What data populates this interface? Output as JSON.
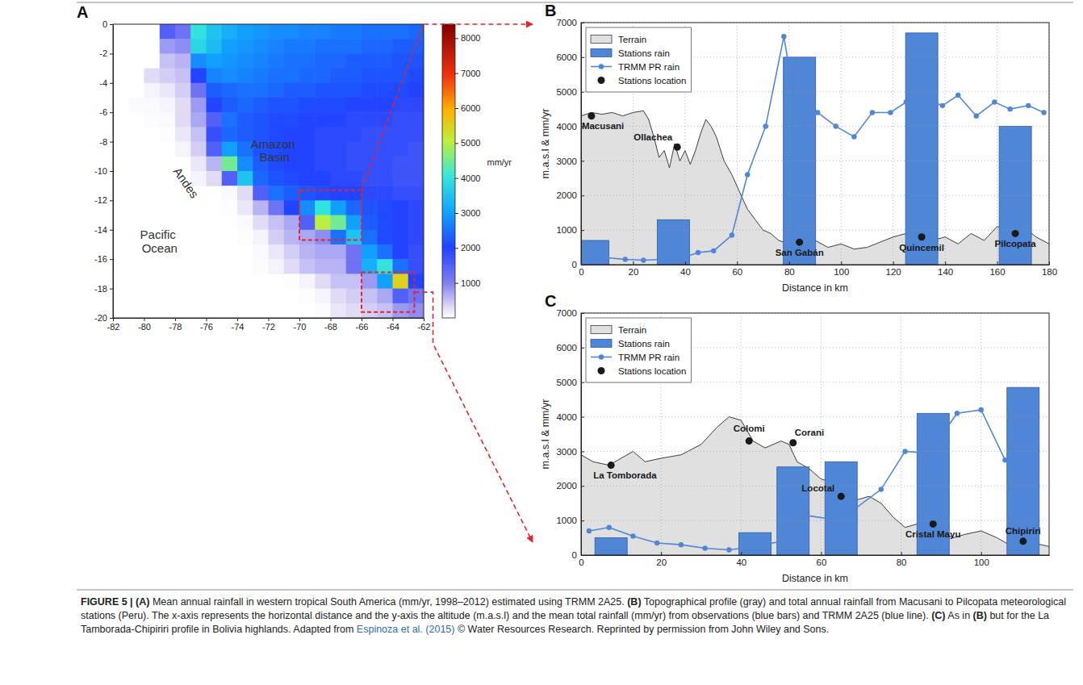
{
  "chart_data": [
    {
      "type": "heatmap",
      "panel": "A",
      "xlim": [
        -82,
        -62
      ],
      "ylim": [
        -20,
        0
      ],
      "xticks": [
        -82,
        -80,
        -78,
        -76,
        -74,
        -72,
        -70,
        -68,
        -66,
        -64,
        -62
      ],
      "yticks": [
        -20,
        -18,
        -16,
        -14,
        -12,
        -10,
        -8,
        -6,
        -4,
        -2,
        0
      ],
      "grid": false,
      "x": [
        -81.5,
        -80.5,
        -79.5,
        -78.5,
        -77.5,
        -76.5,
        -75.5,
        -74.5,
        -73.5,
        -72.5,
        -71.5,
        -70.5,
        -69.5,
        -68.5,
        -67.5,
        -66.5,
        -65.5,
        -64.5,
        -63.5,
        -62.5
      ],
      "y": [
        -0.5,
        -1.5,
        -2.5,
        -3.5,
        -4.5,
        -5.5,
        -6.5,
        -7.5,
        -8.5,
        -9.5,
        -10.5,
        -11.5,
        -12.5,
        -13.5,
        -14.5,
        -15.5,
        -16.5,
        -17.5,
        -18.5,
        -19.5
      ],
      "values": [
        [
          null,
          null,
          null,
          1500,
          1200,
          4000,
          3500,
          3200,
          3000,
          2900,
          2800,
          2800,
          2700,
          2700,
          2600,
          2600,
          2500,
          2500,
          2500,
          2400
        ],
        [
          null,
          null,
          null,
          800,
          900,
          3800,
          3400,
          3000,
          2900,
          2800,
          2700,
          2600,
          2600,
          2500,
          2500,
          2500,
          2400,
          2400,
          2300,
          2300
        ],
        [
          null,
          null,
          null,
          500,
          600,
          2800,
          3000,
          2900,
          2800,
          2700,
          2600,
          2500,
          2500,
          2400,
          2400,
          2300,
          2300,
          2300,
          2200,
          2200
        ],
        [
          null,
          null,
          300,
          400,
          500,
          2000,
          2700,
          2800,
          2700,
          2600,
          2500,
          2500,
          2400,
          2400,
          2300,
          2300,
          2200,
          2200,
          2200,
          2100
        ],
        [
          null,
          null,
          100,
          200,
          400,
          1200,
          2300,
          2400,
          2500,
          2500,
          2400,
          2300,
          2300,
          2200,
          2200,
          2200,
          2100,
          2100,
          2100,
          2000
        ],
        [
          null,
          50,
          50,
          100,
          300,
          800,
          2000,
          2300,
          2400,
          2300,
          2200,
          2200,
          2100,
          2100,
          2100,
          2000,
          2000,
          2000,
          1900,
          1900
        ],
        [
          null,
          null,
          30,
          50,
          300,
          700,
          1500,
          2500,
          2300,
          2200,
          2100,
          2100,
          2000,
          2000,
          2000,
          1900,
          1900,
          1900,
          1800,
          1800
        ],
        [
          null,
          null,
          null,
          20,
          200,
          500,
          1800,
          2400,
          2300,
          2200,
          2100,
          2000,
          2000,
          1900,
          1900,
          1900,
          1800,
          1800,
          1800,
          1800
        ],
        [
          null,
          null,
          null,
          null,
          100,
          400,
          1500,
          3000,
          2500,
          2200,
          2100,
          2000,
          2000,
          1900,
          1900,
          1800,
          1800,
          1800,
          1800,
          1700
        ],
        [
          null,
          null,
          null,
          null,
          null,
          200,
          600,
          4500,
          2800,
          2300,
          2100,
          2000,
          2000,
          1900,
          1900,
          1800,
          1800,
          1800,
          1700,
          1700
        ],
        [
          null,
          null,
          null,
          null,
          null,
          100,
          300,
          1500,
          3500,
          2400,
          2200,
          2100,
          2000,
          2000,
          1900,
          1900,
          1800,
          1800,
          1700,
          1700
        ],
        [
          null,
          null,
          null,
          null,
          null,
          null,
          null,
          50,
          300,
          1500,
          2500,
          2300,
          2200,
          2100,
          2000,
          2000,
          1900,
          1900,
          1800,
          1800
        ],
        [
          null,
          null,
          null,
          null,
          null,
          null,
          null,
          20,
          200,
          600,
          1200,
          2000,
          2800,
          4000,
          3000,
          2400,
          2200,
          2100,
          2000,
          1900
        ],
        [
          null,
          null,
          null,
          null,
          null,
          null,
          null,
          null,
          50,
          300,
          500,
          700,
          1500,
          5000,
          4500,
          3000,
          2300,
          2100,
          2000,
          1900
        ],
        [
          null,
          null,
          null,
          null,
          null,
          null,
          null,
          null,
          20,
          100,
          400,
          600,
          700,
          900,
          2500,
          3500,
          2500,
          2100,
          2000,
          1900
        ],
        [
          null,
          null,
          null,
          null,
          null,
          null,
          null,
          null,
          null,
          50,
          200,
          400,
          600,
          700,
          700,
          1200,
          3000,
          2500,
          2000,
          1800
        ],
        [
          null,
          null,
          null,
          null,
          null,
          null,
          null,
          null,
          null,
          30,
          100,
          300,
          500,
          600,
          600,
          1200,
          3200,
          4000,
          2500,
          1800
        ],
        [
          null,
          null,
          null,
          null,
          null,
          null,
          null,
          null,
          null,
          null,
          null,
          20,
          100,
          300,
          500,
          500,
          800,
          3000,
          5500,
          2000
        ],
        [
          null,
          null,
          null,
          null,
          null,
          null,
          null,
          null,
          null,
          null,
          null,
          null,
          20,
          100,
          300,
          400,
          500,
          700,
          1500,
          1200
        ],
        [
          null,
          null,
          null,
          null,
          null,
          null,
          null,
          null,
          null,
          null,
          null,
          null,
          null,
          30,
          200,
          300,
          400,
          500,
          800,
          900
        ]
      ],
      "colorbar": {
        "range": [
          0,
          8400
        ],
        "ticks": [
          1000,
          2000,
          3000,
          4000,
          5000,
          6000,
          7000,
          8000
        ],
        "label": "mm/yr"
      },
      "annotations": [
        "Amazon Basin",
        "Andes",
        "Pacific Ocean"
      ],
      "boxes": [
        {
          "x": [
            -70,
            -66
          ],
          "y": [
            -14.7,
            -11.3
          ]
        },
        {
          "x": [
            -66,
            -62.6
          ],
          "y": [
            -19.6,
            -16.9
          ]
        }
      ]
    },
    {
      "type": "combo",
      "panel": "B",
      "xlabel": "Distance in km",
      "ylabel": "m.a.s.l & mm/yr",
      "xlim": [
        0,
        180
      ],
      "ylim": [
        0,
        7000
      ],
      "xticks": [
        0,
        20,
        40,
        60,
        80,
        100,
        120,
        140,
        160,
        180
      ],
      "yticks": [
        0,
        1000,
        2000,
        3000,
        4000,
        5000,
        6000,
        7000
      ],
      "grid": true,
      "legend": "upper left",
      "series": [
        {
          "name": "Terrain",
          "type": "area",
          "color": "#e0e0e0",
          "x": [
            0,
            4,
            8,
            12,
            16,
            20,
            24,
            26,
            28,
            30,
            32,
            34,
            36,
            38,
            40,
            42,
            44,
            46,
            48,
            50,
            52,
            55,
            58,
            61,
            64,
            67,
            70,
            73,
            76,
            80,
            85,
            90,
            95,
            100,
            105,
            110,
            115,
            120,
            125,
            130,
            135,
            140,
            145,
            150,
            155,
            160,
            165,
            170,
            175,
            180
          ],
          "values": [
            4300,
            4400,
            4350,
            4400,
            4300,
            4400,
            4450,
            4200,
            3700,
            3100,
            3300,
            2800,
            3500,
            3000,
            3300,
            2900,
            3300,
            3800,
            4200,
            4000,
            3700,
            3000,
            2600,
            2100,
            1600,
            1300,
            1000,
            900,
            700,
            600,
            550,
            700,
            500,
            600,
            450,
            500,
            650,
            800,
            900,
            800,
            700,
            800,
            600,
            900,
            700,
            1100,
            1000,
            1100,
            800,
            600
          ]
        },
        {
          "name": "Stations rain",
          "type": "bar",
          "color": "#4f86d6",
          "x": [
            4.5,
            35.5,
            84,
            131,
            167
          ],
          "values": [
            700,
            1300,
            6000,
            6700,
            4000
          ]
        },
        {
          "name": "TRMM PR rain",
          "type": "line",
          "color": "#4f86d6",
          "marker": "circle",
          "x": [
            3,
            10,
            17,
            24,
            31,
            38,
            45,
            51,
            58,
            64,
            71,
            78,
            84,
            91,
            98,
            105,
            112,
            119,
            125,
            132,
            139,
            145,
            152,
            159,
            165,
            172,
            178
          ],
          "values": [
            350,
            200,
            150,
            130,
            150,
            170,
            350,
            400,
            850,
            2600,
            4000,
            6600,
            3900,
            4400,
            4000,
            3700,
            4400,
            4400,
            4700,
            4800,
            4600,
            4900,
            4300,
            4700,
            4500,
            4600,
            4400
          ]
        },
        {
          "name": "Stations location",
          "type": "scatter",
          "color": "#1a1a1a",
          "marker": "circle",
          "x": [
            4,
            37,
            84,
            131,
            167
          ],
          "values": [
            4300,
            3400,
            650,
            800,
            900
          ],
          "labels": [
            "Macusani",
            "Ollachea",
            "San Gabán",
            "Quincemil",
            "Pilcopata"
          ]
        }
      ]
    },
    {
      "type": "combo",
      "panel": "C",
      "xlabel": "Distance in km",
      "ylabel": "m.a.s.l & mm/yr",
      "xlim": [
        0,
        117
      ],
      "ylim": [
        0,
        7000
      ],
      "xticks": [
        0,
        20,
        40,
        60,
        80,
        100
      ],
      "yticks": [
        0,
        1000,
        2000,
        3000,
        4000,
        5000,
        6000,
        7000
      ],
      "grid": true,
      "legend": "upper left",
      "series": [
        {
          "name": "Terrain",
          "type": "area",
          "color": "#e0e0e0",
          "x": [
            0,
            3,
            7,
            10,
            13,
            16,
            20,
            25,
            30,
            34,
            37,
            40,
            43,
            46,
            50,
            52,
            54,
            57,
            60,
            63,
            66,
            69,
            72,
            75,
            78,
            81,
            84,
            87,
            90,
            93,
            96,
            100,
            104,
            107,
            110,
            113,
            117
          ],
          "values": [
            2900,
            2700,
            2600,
            2800,
            3000,
            2700,
            2800,
            2900,
            3200,
            3700,
            4000,
            3900,
            3300,
            3100,
            3300,
            3200,
            2700,
            2500,
            2200,
            2100,
            1700,
            1600,
            1700,
            1500,
            1100,
            800,
            900,
            900,
            700,
            500,
            600,
            700,
            500,
            300,
            300,
            350,
            250
          ]
        },
        {
          "name": "Stations rain",
          "type": "bar",
          "color": "#4f86d6",
          "x": [
            7.5,
            43.5,
            53,
            65,
            88,
            110.5
          ],
          "values": [
            500,
            650,
            2550,
            2700,
            4100,
            4850
          ]
        },
        {
          "name": "TRMM PR rain",
          "type": "line",
          "color": "#4f86d6",
          "marker": "circle",
          "x": [
            2,
            7,
            13,
            19,
            25,
            31,
            37,
            44,
            50,
            56,
            62,
            68,
            75,
            81,
            87,
            94,
            100,
            106,
            113
          ],
          "values": [
            700,
            800,
            550,
            350,
            300,
            200,
            150,
            250,
            400,
            1150,
            1050,
            1300,
            1900,
            3000,
            2950,
            4100,
            4200,
            2750,
            2350
          ]
        },
        {
          "name": "Stations location",
          "type": "scatter",
          "color": "#1a1a1a",
          "marker": "circle",
          "x": [
            7.5,
            42,
            53,
            65,
            88,
            110.5
          ],
          "values": [
            2600,
            3300,
            3250,
            1700,
            900,
            400
          ],
          "labels": [
            "La Tomborada",
            "Colomi",
            "Corani",
            "Locotal",
            "Cristal Mayu",
            "Chipiriri"
          ]
        }
      ]
    }
  ],
  "caption": [
    {
      "text": "FIGURE 5 | (A)",
      "style": "bold"
    },
    {
      "text": " Mean annual rainfall in western tropical South America (mm/yr, 1998–2012) estimated using TRMM 2A25. "
    },
    {
      "text": "(B)",
      "style": "bold"
    },
    {
      "text": " Topographical profile (gray) and total annual rainfall from Macusani to Pilcopata meteorological stations (Peru). The x-axis represents the horizontal distance and the y-axis the altitude (m.a.s.l) and the mean total rainfall (mm/yr) from observations (blue bars) and TRMM 2A25 (blue line). "
    },
    {
      "text": "(C)",
      "style": "bold"
    },
    {
      "text": " As in "
    },
    {
      "text": "(B)",
      "style": "bold"
    },
    {
      "text": " but for the La Tamborada-Chipiriri profile in Bolivia highlands. Adapted from "
    },
    {
      "text": "Espinoza et al. (2015)",
      "style": "link"
    },
    {
      "text": " © Water Resources Research. Reprinted by permission from John Wiley and Sons."
    }
  ]
}
